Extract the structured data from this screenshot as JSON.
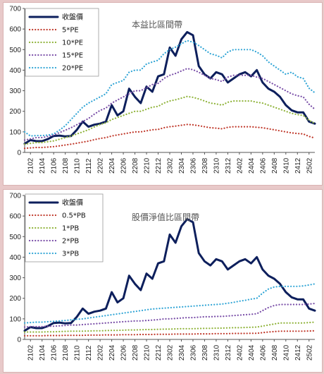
{
  "chart_data": [
    {
      "type": "line",
      "title": "本益比區間帶",
      "xlabel": "",
      "ylabel": "",
      "ylim": [
        0,
        700
      ],
      "yticks": [
        0,
        100,
        200,
        300,
        400,
        500,
        600,
        700
      ],
      "x": [
        "2101",
        "2102",
        "2103",
        "2104",
        "2105",
        "2106",
        "2107",
        "2108",
        "2109",
        "2110",
        "2111",
        "2112",
        "2201",
        "2202",
        "2203",
        "2204",
        "2205",
        "2206",
        "2207",
        "2208",
        "2209",
        "2210",
        "2211",
        "2212",
        "2301",
        "2302",
        "2303",
        "2304",
        "2305",
        "2306",
        "2307",
        "2308",
        "2309",
        "2310",
        "2311",
        "2312",
        "2401",
        "2402",
        "2403",
        "2404",
        "2405",
        "2406",
        "2407",
        "2408",
        "2409",
        "2410",
        "2411",
        "2412",
        "2501",
        "2502",
        "2503"
      ],
      "xtick_labels": [
        "2102",
        "2104",
        "2106",
        "2108",
        "2110",
        "2112",
        "2202",
        "2204",
        "2206",
        "2208",
        "2210",
        "2212",
        "2302",
        "2304",
        "2306",
        "2308",
        "2310",
        "2312",
        "2402",
        "2404",
        "2406",
        "2408",
        "2410",
        "2412",
        "2502"
      ],
      "grid": false,
      "legend": "top-left",
      "series": [
        {
          "name": "收盤價",
          "color": "#0d1f5c",
          "dash": "solid",
          "width": 3,
          "values": [
            42,
            60,
            55,
            55,
            65,
            80,
            82,
            78,
            80,
            110,
            150,
            125,
            135,
            140,
            150,
            230,
            180,
            200,
            310,
            270,
            240,
            320,
            295,
            370,
            380,
            510,
            470,
            550,
            585,
            570,
            420,
            380,
            360,
            390,
            380,
            340,
            360,
            380,
            390,
            370,
            400,
            340,
            310,
            295,
            270,
            230,
            205,
            195,
            195,
            150,
            140
          ]
        },
        {
          "name": "5*PE",
          "color": "#c0392b",
          "dash": "dot",
          "width": 2.2,
          "values": [
            20,
            22,
            24,
            24,
            26,
            28,
            32,
            36,
            40,
            45,
            50,
            55,
            62,
            68,
            72,
            80,
            85,
            90,
            95,
            100,
            100,
            105,
            110,
            112,
            120,
            125,
            128,
            132,
            136,
            134,
            130,
            125,
            120,
            118,
            115,
            122,
            125,
            125,
            125,
            125,
            122,
            120,
            115,
            110,
            105,
            100,
            95,
            92,
            90,
            78,
            70
          ]
        },
        {
          "name": "10*PE",
          "color": "#8fb33a",
          "dash": "dot",
          "width": 2.2,
          "values": [
            40,
            44,
            48,
            48,
            52,
            56,
            64,
            72,
            80,
            90,
            100,
            110,
            124,
            136,
            144,
            160,
            170,
            180,
            190,
            200,
            200,
            210,
            220,
            224,
            240,
            250,
            256,
            264,
            272,
            268,
            260,
            250,
            240,
            236,
            230,
            244,
            250,
            250,
            250,
            250,
            244,
            240,
            230,
            220,
            210,
            200,
            190,
            184,
            180,
            156,
            140
          ]
        },
        {
          "name": "15*PE",
          "color": "#7a4fa8",
          "dash": "dot",
          "width": 2.2,
          "values": [
            60,
            66,
            72,
            72,
            78,
            84,
            96,
            108,
            120,
            135,
            150,
            165,
            186,
            204,
            216,
            240,
            255,
            270,
            285,
            300,
            300,
            315,
            330,
            336,
            360,
            375,
            384,
            396,
            408,
            402,
            390,
            375,
            360,
            354,
            345,
            366,
            375,
            375,
            375,
            375,
            366,
            360,
            345,
            330,
            315,
            300,
            285,
            276,
            270,
            234,
            210
          ]
        },
        {
          "name": "20*PE",
          "color": "#33a6d6",
          "dash": "dot",
          "width": 2.2,
          "values": [
            100,
            80,
            82,
            82,
            84,
            90,
            108,
            130,
            160,
            190,
            220,
            240,
            255,
            270,
            285,
            330,
            340,
            350,
            390,
            400,
            400,
            430,
            440,
            448,
            480,
            500,
            512,
            528,
            544,
            536,
            520,
            500,
            480,
            472,
            460,
            488,
            500,
            500,
            500,
            500,
            488,
            470,
            440,
            420,
            400,
            380,
            390,
            368,
            360,
            312,
            290
          ]
        }
      ]
    },
    {
      "type": "line",
      "title": "股價淨值比區間帶",
      "xlabel": "",
      "ylabel": "",
      "ylim": [
        0,
        700
      ],
      "yticks": [
        0,
        100,
        200,
        300,
        400,
        500,
        600,
        700
      ],
      "x": [
        "2101",
        "2102",
        "2103",
        "2104",
        "2105",
        "2106",
        "2107",
        "2108",
        "2109",
        "2110",
        "2111",
        "2112",
        "2201",
        "2202",
        "2203",
        "2204",
        "2205",
        "2206",
        "2207",
        "2208",
        "2209",
        "2210",
        "2211",
        "2212",
        "2301",
        "2302",
        "2303",
        "2304",
        "2305",
        "2306",
        "2307",
        "2308",
        "2309",
        "2310",
        "2311",
        "2312",
        "2401",
        "2402",
        "2403",
        "2404",
        "2405",
        "2406",
        "2407",
        "2408",
        "2409",
        "2410",
        "2411",
        "2412",
        "2501",
        "2502",
        "2503"
      ],
      "xtick_labels": [
        "2102",
        "2104",
        "2106",
        "2108",
        "2110",
        "2112",
        "2202",
        "2204",
        "2206",
        "2208",
        "2210",
        "2212",
        "2302",
        "2304",
        "2306",
        "2308",
        "2310",
        "2312",
        "2402",
        "2404",
        "2406",
        "2408",
        "2410",
        "2412",
        "2502"
      ],
      "grid": false,
      "legend": "top-left",
      "series": [
        {
          "name": "收盤價",
          "color": "#0d1f5c",
          "dash": "solid",
          "width": 3,
          "values": [
            42,
            60,
            55,
            55,
            65,
            80,
            82,
            78,
            80,
            110,
            150,
            125,
            135,
            140,
            150,
            230,
            180,
            200,
            310,
            270,
            240,
            320,
            295,
            370,
            380,
            510,
            470,
            550,
            585,
            570,
            420,
            380,
            360,
            390,
            380,
            340,
            360,
            380,
            390,
            370,
            400,
            340,
            310,
            295,
            270,
            230,
            205,
            195,
            195,
            150,
            140
          ]
        },
        {
          "name": "0.5*PB",
          "color": "#c0392b",
          "dash": "dot",
          "width": 2.2,
          "values": [
            18,
            18,
            18,
            18,
            19,
            19,
            19,
            20,
            20,
            20,
            20,
            21,
            21,
            21,
            22,
            22,
            22,
            23,
            23,
            23,
            24,
            24,
            24,
            25,
            25,
            25,
            26,
            26,
            26,
            26,
            27,
            27,
            27,
            28,
            28,
            28,
            29,
            29,
            29,
            30,
            30,
            33,
            36,
            38,
            40,
            40,
            40,
            40,
            40,
            41,
            42
          ]
        },
        {
          "name": "1*PB",
          "color": "#8fb33a",
          "dash": "dot",
          "width": 2.2,
          "values": [
            36,
            36,
            36,
            36,
            37,
            37,
            38,
            39,
            40,
            40,
            40,
            41,
            42,
            42,
            43,
            44,
            44,
            45,
            46,
            46,
            47,
            48,
            48,
            49,
            50,
            50,
            51,
            52,
            52,
            52,
            53,
            54,
            54,
            55,
            55,
            56,
            57,
            57,
            58,
            59,
            60,
            65,
            70,
            75,
            80,
            80,
            80,
            80,
            80,
            82,
            84
          ]
        },
        {
          "name": "2*PB",
          "color": "#7a4fa8",
          "dash": "dot",
          "width": 2.2,
          "values": [
            60,
            62,
            62,
            62,
            64,
            64,
            66,
            68,
            70,
            70,
            72,
            74,
            76,
            78,
            80,
            82,
            84,
            86,
            88,
            90,
            90,
            92,
            94,
            96,
            100,
            100,
            102,
            104,
            106,
            106,
            108,
            110,
            110,
            112,
            112,
            114,
            116,
            118,
            120,
            122,
            125,
            140,
            155,
            165,
            170,
            170,
            170,
            170,
            170,
            172,
            175
          ]
        },
        {
          "name": "3*PB",
          "color": "#33a6d6",
          "dash": "dot",
          "width": 2.2,
          "values": [
            80,
            82,
            84,
            84,
            86,
            88,
            90,
            92,
            95,
            98,
            100,
            104,
            108,
            112,
            116,
            120,
            124,
            128,
            132,
            136,
            140,
            144,
            148,
            150,
            152,
            154,
            156,
            158,
            160,
            162,
            164,
            166,
            168,
            170,
            172,
            176,
            180,
            186,
            190,
            196,
            200,
            225,
            245,
            255,
            258,
            258,
            258,
            258,
            260,
            265,
            270
          ]
        }
      ]
    }
  ]
}
